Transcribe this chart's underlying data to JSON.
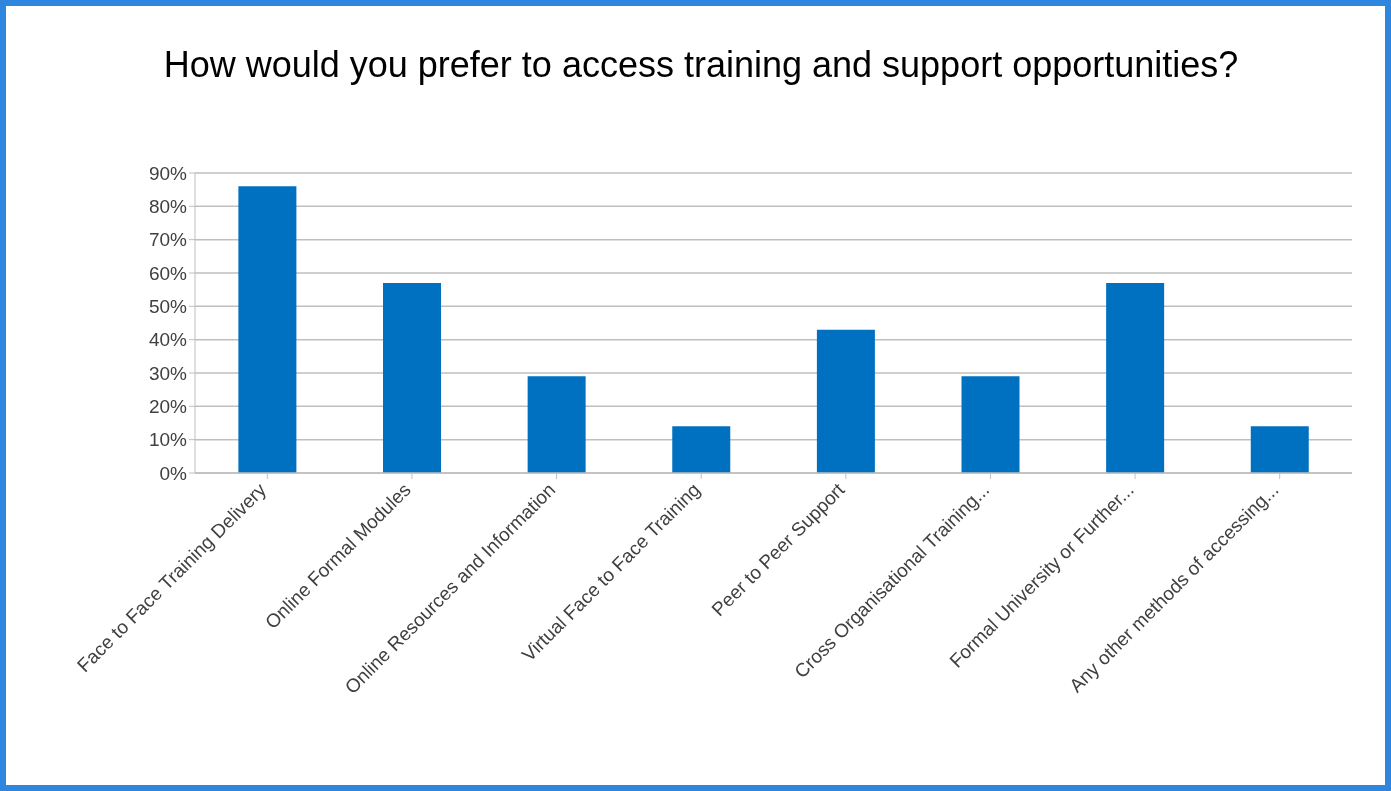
{
  "chart_data": {
    "type": "bar",
    "title": "How would you prefer to access training and support opportunities?",
    "categories": [
      "Face to Face Training Delivery",
      "Online Formal Modules",
      "Online Resources and Information",
      "Virtual Face to Face Training",
      "Peer to Peer Support",
      "Cross Organisational Training...",
      "Formal University or Further...",
      "Any other methods of accessing..."
    ],
    "values": [
      86,
      57,
      29,
      14,
      43,
      29,
      57,
      14
    ],
    "color": "#0070c0",
    "ylim": [
      0,
      90
    ],
    "yticks": [
      {
        "value": 0,
        "label": "0%"
      },
      {
        "value": 10,
        "label": "10%"
      },
      {
        "value": 20,
        "label": "20%"
      },
      {
        "value": 30,
        "label": "30%"
      },
      {
        "value": 40,
        "label": "40%"
      },
      {
        "value": 50,
        "label": "50%"
      },
      {
        "value": 60,
        "label": "60%"
      },
      {
        "value": 70,
        "label": "70%"
      },
      {
        "value": 80,
        "label": "80%"
      },
      {
        "value": 90,
        "label": "90%"
      }
    ],
    "grid": "y"
  }
}
